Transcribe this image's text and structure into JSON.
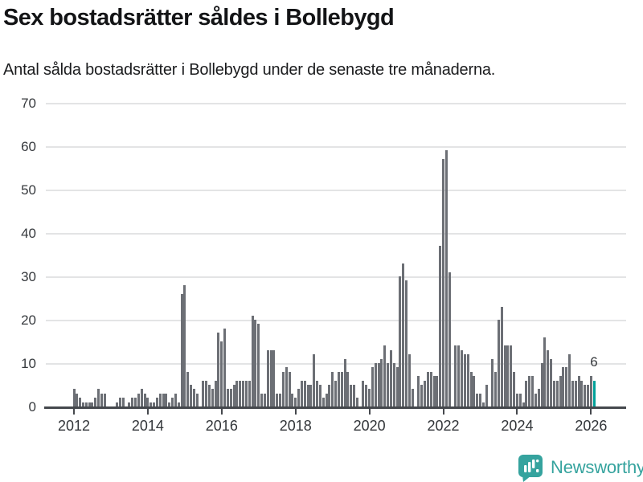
{
  "header": {
    "title": "Sex bostadsrätter såldes i Bollebygd",
    "subtitle": "Antal sålda bostadsrätter i Bollebygd under de senaste tre månaderna."
  },
  "chart_data": {
    "type": "bar",
    "title": "Sex bostadsrätter såldes i Bollebygd",
    "subtitle": "Antal sålda bostadsrätter i Bollebygd under de senaste tre månaderna.",
    "x_start": "2012-01",
    "x_end": "2026-02",
    "x_freq": "monthly",
    "values": [
      4,
      3,
      2,
      1,
      1,
      1,
      1,
      2,
      4,
      3,
      3,
      0,
      0,
      0,
      1,
      2,
      2,
      0,
      1,
      2,
      2,
      3,
      4,
      3,
      2,
      1,
      1,
      2,
      3,
      3,
      3,
      1,
      2,
      3,
      1,
      26,
      28,
      8,
      5,
      4,
      3,
      0,
      6,
      6,
      5,
      4,
      6,
      17,
      15,
      18,
      4,
      4,
      5,
      6,
      6,
      6,
      6,
      6,
      21,
      20,
      19,
      3,
      3,
      13,
      13,
      13,
      3,
      3,
      8,
      9,
      8,
      3,
      2,
      4,
      6,
      6,
      5,
      5,
      12,
      6,
      5,
      2,
      3,
      5,
      8,
      6,
      8,
      8,
      11,
      8,
      5,
      5,
      2,
      0,
      6,
      5,
      4,
      9,
      10,
      10,
      11,
      14,
      10,
      13,
      10,
      9,
      30,
      33,
      29,
      12,
      4,
      0,
      7,
      5,
      6,
      8,
      8,
      7,
      7,
      37,
      57,
      59,
      31,
      0,
      14,
      14,
      13,
      12,
      12,
      8,
      7,
      3,
      3,
      1,
      5,
      0,
      11,
      8,
      20,
      23,
      14,
      14,
      14,
      8,
      3,
      3,
      1,
      6,
      7,
      7,
      3,
      4,
      10,
      16,
      13,
      11,
      6,
      6,
      7,
      9,
      9,
      12,
      6,
      6,
      7,
      6,
      5,
      5,
      7,
      6
    ],
    "highlight": {
      "index": 169,
      "label": "6",
      "color": "#00a19a",
      "month": "2026-02"
    },
    "bar_color": "#6c6f75",
    "ylim": [
      0,
      70
    ],
    "yticks": [
      0,
      10,
      20,
      30,
      40,
      50,
      60,
      70
    ],
    "xtick_years": [
      2012,
      2014,
      2016,
      2018,
      2020,
      2022,
      2024,
      2026
    ],
    "grid": true,
    "gridline_color": "#e3e4e5",
    "axis_color": "#45484d",
    "legend": "none"
  },
  "footer": {
    "brand": "Newsworthy",
    "brand_color": "#35a39e",
    "logo_icon": "newsworthy-speech-bubble-bar-chart-icon"
  }
}
